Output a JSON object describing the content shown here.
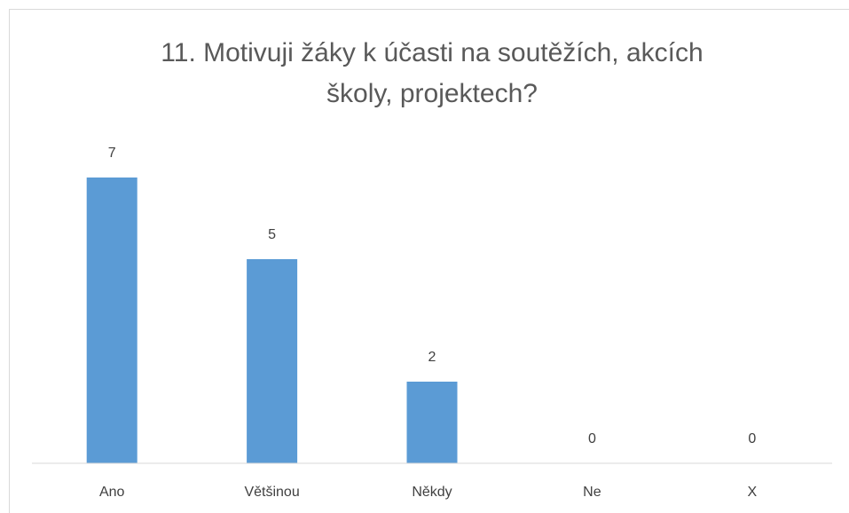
{
  "chart_data": {
    "type": "bar",
    "title": "11. Motivuji žáky k účasti na soutěžích, akcích školy, projektech?",
    "categories": [
      "Ano",
      "Většinou",
      "Někdy",
      "Ne",
      "X"
    ],
    "values": [
      7,
      5,
      2,
      0,
      0
    ],
    "color": "#5b9bd5",
    "ylim": [
      0,
      8
    ]
  }
}
